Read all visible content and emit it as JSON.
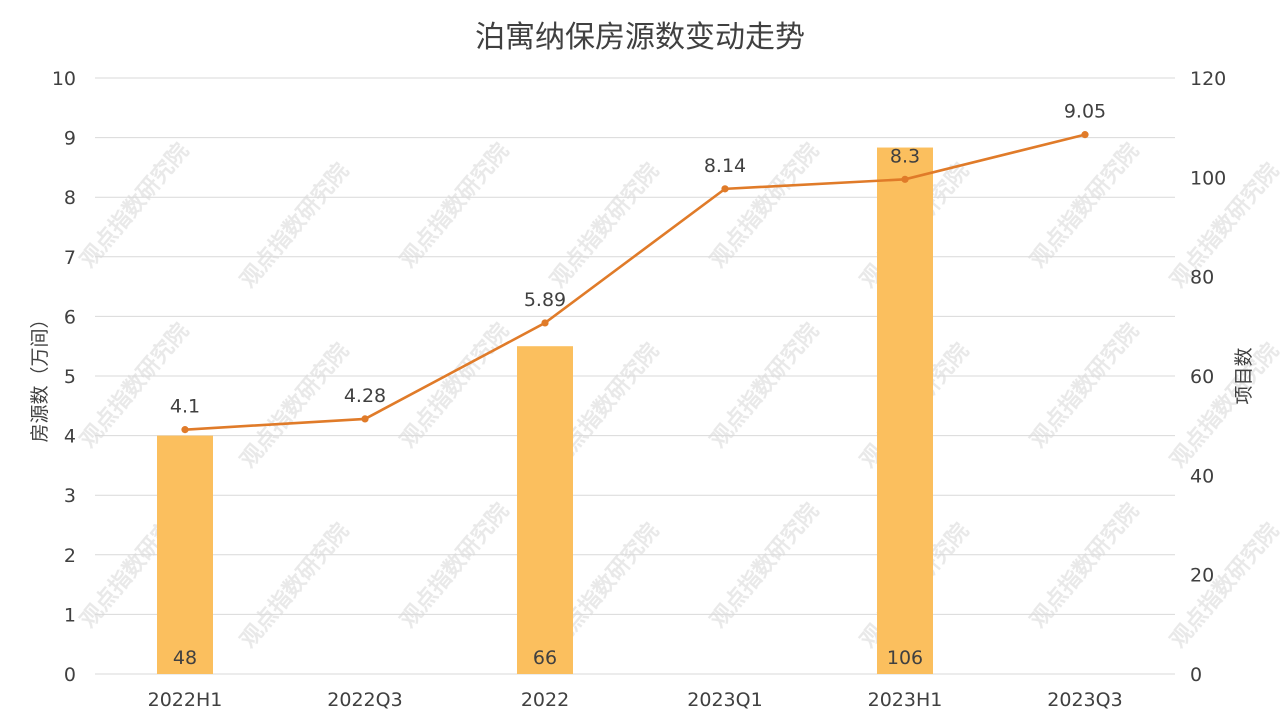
{
  "chart_data": {
    "type": "bar+line",
    "title": "泊寓纳保房源数变动走势",
    "categories": [
      "2022H1",
      "2022Q3",
      "2022",
      "2023Q1",
      "2023H1",
      "2023Q3"
    ],
    "bar_series": {
      "axis": "right",
      "color": "#fbbf5e",
      "values": [
        48,
        null,
        66,
        null,
        106,
        null
      ],
      "labels": [
        "48",
        "",
        "66",
        "",
        "106",
        ""
      ]
    },
    "line_series": {
      "axis": "left",
      "color": "#e07b29",
      "values": [
        4.1,
        4.28,
        5.89,
        8.14,
        8.3,
        9.05
      ],
      "labels": [
        "4.1",
        "4.28",
        "5.89",
        "8.14",
        "8.3",
        "9.05"
      ]
    },
    "ylabel_left": "房源数（万间）",
    "ylabel_right": "项目数",
    "ylim_left": [
      0,
      10
    ],
    "ylim_right": [
      0,
      120
    ],
    "yticks_left": [
      "0",
      "1",
      "2",
      "3",
      "4",
      "5",
      "6",
      "7",
      "8",
      "9",
      "10"
    ],
    "yticks_right": [
      "0",
      "20",
      "40",
      "60",
      "80",
      "100",
      "120"
    ],
    "grid": true,
    "watermark": "观点指数研究院"
  }
}
